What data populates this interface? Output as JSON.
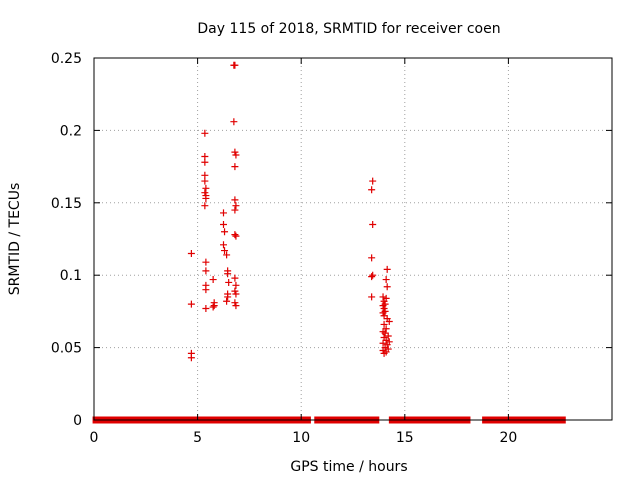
{
  "chart_data": {
    "type": "scatter",
    "title": "Day 115 of 2018, SRMTID for receiver coen",
    "xlabel": "GPS time / hours",
    "ylabel": "SRMTID / TECUs",
    "xlim": [
      0,
      25
    ],
    "ylim": [
      0,
      0.25
    ],
    "grid": true,
    "marker": "+",
    "color": "#e00000",
    "xticks": [
      0,
      5,
      10,
      15,
      20
    ],
    "yticks": [
      0,
      0.05,
      0.1,
      0.15,
      0.2,
      0.25
    ],
    "xtick_labels": [
      "0",
      "5",
      "10",
      "15",
      "20"
    ],
    "ytick_labels": [
      "0",
      "0.05",
      "0.1",
      "0.15",
      "0.2",
      "0.25"
    ],
    "zero_segments": [
      [
        0.1,
        4.6
      ],
      [
        4.9,
        5.3
      ],
      [
        5.6,
        6.3
      ],
      [
        6.5,
        6.8
      ],
      [
        7.1,
        10.3
      ],
      [
        10.8,
        13.6
      ],
      [
        14.4,
        17.4
      ],
      [
        17.6,
        18.0
      ],
      [
        18.9,
        18.9
      ],
      [
        19.2,
        22.6
      ]
    ],
    "points": [
      {
        "x": 4.7,
        "y": 0.115
      },
      {
        "x": 4.7,
        "y": 0.08
      },
      {
        "x": 4.7,
        "y": 0.046
      },
      {
        "x": 4.7,
        "y": 0.043
      },
      {
        "x": 5.35,
        "y": 0.198
      },
      {
        "x": 5.35,
        "y": 0.182
      },
      {
        "x": 5.35,
        "y": 0.178
      },
      {
        "x": 5.35,
        "y": 0.169
      },
      {
        "x": 5.35,
        "y": 0.165
      },
      {
        "x": 5.4,
        "y": 0.16
      },
      {
        "x": 5.35,
        "y": 0.157
      },
      {
        "x": 5.4,
        "y": 0.155
      },
      {
        "x": 5.4,
        "y": 0.153
      },
      {
        "x": 5.35,
        "y": 0.148
      },
      {
        "x": 5.4,
        "y": 0.109
      },
      {
        "x": 5.4,
        "y": 0.103
      },
      {
        "x": 5.4,
        "y": 0.093
      },
      {
        "x": 5.4,
        "y": 0.09
      },
      {
        "x": 5.4,
        "y": 0.077
      },
      {
        "x": 5.75,
        "y": 0.097
      },
      {
        "x": 5.8,
        "y": 0.081
      },
      {
        "x": 5.8,
        "y": 0.079
      },
      {
        "x": 5.75,
        "y": 0.078
      },
      {
        "x": 6.25,
        "y": 0.143
      },
      {
        "x": 6.25,
        "y": 0.135
      },
      {
        "x": 6.3,
        "y": 0.13
      },
      {
        "x": 6.25,
        "y": 0.121
      },
      {
        "x": 6.3,
        "y": 0.117
      },
      {
        "x": 6.4,
        "y": 0.114
      },
      {
        "x": 6.45,
        "y": 0.103
      },
      {
        "x": 6.45,
        "y": 0.101
      },
      {
        "x": 6.5,
        "y": 0.095
      },
      {
        "x": 6.45,
        "y": 0.087
      },
      {
        "x": 6.45,
        "y": 0.085
      },
      {
        "x": 6.4,
        "y": 0.082
      },
      {
        "x": 6.75,
        "y": 0.245
      },
      {
        "x": 6.8,
        "y": 0.245
      },
      {
        "x": 6.75,
        "y": 0.206
      },
      {
        "x": 6.8,
        "y": 0.185
      },
      {
        "x": 6.85,
        "y": 0.183
      },
      {
        "x": 6.8,
        "y": 0.175
      },
      {
        "x": 6.8,
        "y": 0.152
      },
      {
        "x": 6.85,
        "y": 0.148
      },
      {
        "x": 6.8,
        "y": 0.145
      },
      {
        "x": 6.8,
        "y": 0.128
      },
      {
        "x": 6.85,
        "y": 0.127
      },
      {
        "x": 6.8,
        "y": 0.098
      },
      {
        "x": 6.85,
        "y": 0.093
      },
      {
        "x": 6.8,
        "y": 0.089
      },
      {
        "x": 6.85,
        "y": 0.087
      },
      {
        "x": 6.8,
        "y": 0.081
      },
      {
        "x": 6.85,
        "y": 0.079
      },
      {
        "x": 13.45,
        "y": 0.165
      },
      {
        "x": 13.4,
        "y": 0.159
      },
      {
        "x": 13.45,
        "y": 0.135
      },
      {
        "x": 13.4,
        "y": 0.112
      },
      {
        "x": 13.45,
        "y": 0.1
      },
      {
        "x": 13.4,
        "y": 0.099
      },
      {
        "x": 13.4,
        "y": 0.085
      },
      {
        "x": 14.15,
        "y": 0.104
      },
      {
        "x": 14.1,
        "y": 0.097
      },
      {
        "x": 14.15,
        "y": 0.092
      },
      {
        "x": 13.95,
        "y": 0.085
      },
      {
        "x": 14.1,
        "y": 0.084
      },
      {
        "x": 14.0,
        "y": 0.082
      },
      {
        "x": 14.05,
        "y": 0.08
      },
      {
        "x": 13.95,
        "y": 0.079
      },
      {
        "x": 14.0,
        "y": 0.077
      },
      {
        "x": 14.05,
        "y": 0.075
      },
      {
        "x": 13.95,
        "y": 0.074
      },
      {
        "x": 14.0,
        "y": 0.072
      },
      {
        "x": 14.15,
        "y": 0.07
      },
      {
        "x": 14.25,
        "y": 0.068
      },
      {
        "x": 14.0,
        "y": 0.066
      },
      {
        "x": 14.1,
        "y": 0.063
      },
      {
        "x": 13.95,
        "y": 0.061
      },
      {
        "x": 14.05,
        "y": 0.06
      },
      {
        "x": 14.2,
        "y": 0.058
      },
      {
        "x": 14.0,
        "y": 0.057
      },
      {
        "x": 14.1,
        "y": 0.055
      },
      {
        "x": 14.25,
        "y": 0.054
      },
      {
        "x": 13.95,
        "y": 0.053
      },
      {
        "x": 14.15,
        "y": 0.052
      },
      {
        "x": 14.05,
        "y": 0.05
      },
      {
        "x": 14.2,
        "y": 0.049
      },
      {
        "x": 13.95,
        "y": 0.048
      },
      {
        "x": 14.1,
        "y": 0.047
      },
      {
        "x": 14.0,
        "y": 0.046
      }
    ]
  }
}
